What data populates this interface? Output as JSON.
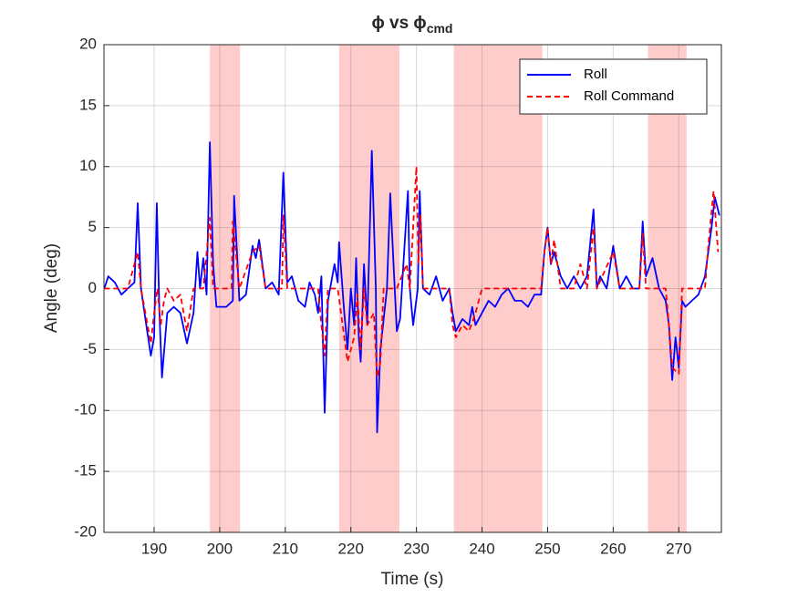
{
  "chart_data": {
    "type": "line",
    "title": {
      "text": "ϕ  vs  ϕ",
      "subscript": "cmd"
    },
    "xlabel": "Time (s)",
    "ylabel": "Angle (deg)",
    "xlim": [
      182.35,
      276.5
    ],
    "ylim": [
      -20,
      20
    ],
    "xticks": [
      190,
      200,
      210,
      220,
      230,
      240,
      250,
      260,
      270
    ],
    "yticks": [
      -20,
      -15,
      -10,
      -5,
      0,
      5,
      10,
      15,
      20
    ],
    "grid": true,
    "legend": "northeast",
    "shade_color": "#ffcccc",
    "shaded_regions": [
      [
        198.5,
        203.1
      ],
      [
        218.2,
        227.4
      ],
      [
        235.7,
        249.2
      ],
      [
        265.3,
        271.2
      ]
    ],
    "series": [
      {
        "name": "Roll",
        "color": "#0000ff",
        "dash": "solid",
        "x": [
          182.4,
          183,
          184,
          185,
          186,
          187,
          187.5,
          188,
          188.8,
          189.5,
          190,
          190.4,
          190.8,
          191.2,
          192,
          193,
          194,
          195,
          196,
          196.6,
          197,
          197.5,
          198,
          198.5,
          199,
          199.5,
          201,
          202,
          202.2,
          203,
          204,
          205,
          205.5,
          206,
          207,
          208,
          209,
          209.7,
          210.3,
          211,
          212,
          213,
          213.7,
          214.5,
          215,
          215.5,
          216,
          216.5,
          217,
          217.5,
          218,
          218.2,
          219,
          219.5,
          220,
          220.5,
          220.8,
          221.2,
          221.5,
          222,
          222.5,
          223.2,
          223.8,
          224,
          224.5,
          225.5,
          226,
          226.5,
          227,
          227.5,
          228,
          228.7,
          229,
          229.5,
          230.2,
          230.5,
          231,
          232,
          233,
          234,
          235,
          235.5,
          236,
          237,
          238,
          238.5,
          239,
          240,
          241,
          242,
          243,
          244,
          245,
          246,
          247,
          248,
          249,
          249.5,
          250,
          250.5,
          251,
          252,
          253,
          254,
          255,
          256,
          257,
          257.5,
          258,
          259,
          260,
          261,
          262,
          263,
          264,
          264.5,
          265,
          266,
          267,
          268,
          268.5,
          269,
          269.5,
          270,
          270.5,
          271,
          272,
          273,
          274,
          274.5,
          275,
          275.5,
          276.2
        ],
        "values": [
          0,
          1,
          0.5,
          -0.5,
          0,
          0.5,
          7,
          0,
          -3,
          -5.5,
          -4,
          7,
          -2,
          -7.3,
          -2,
          -1.5,
          -2,
          -4.5,
          -2,
          3,
          0,
          2.5,
          -0.5,
          12,
          2,
          -1.5,
          -1.5,
          -1,
          7.6,
          -1,
          -0.5,
          3.5,
          2.5,
          4,
          0,
          0.5,
          -0.5,
          9.5,
          0.5,
          1,
          -1,
          -1.5,
          0.5,
          -0.5,
          -2,
          1,
          -10.2,
          -1,
          0.5,
          2,
          0.5,
          3.8,
          -2,
          -5,
          0,
          -3,
          2.5,
          -4,
          -6,
          2,
          -3,
          11.3,
          0,
          -11.8,
          -5,
          0,
          7.8,
          2,
          -3.5,
          -2.5,
          2,
          8,
          0,
          -3,
          0,
          8,
          0,
          -0.5,
          1,
          -1,
          0,
          -2,
          -3.5,
          -2.5,
          -3,
          -1.5,
          -3,
          -2,
          -1,
          -1.5,
          -0.5,
          0,
          -1,
          -1,
          -1.5,
          -0.5,
          -0.5,
          3,
          5,
          2,
          3,
          1,
          0,
          1,
          0,
          1,
          6.5,
          0,
          1,
          0,
          3.5,
          0,
          1,
          0,
          0,
          5.5,
          1,
          2.5,
          0,
          -1,
          -3,
          -7.5,
          -4,
          -6.5,
          -1,
          -1.5,
          -1,
          -0.5,
          1,
          3,
          5,
          7.5,
          6
        ]
      },
      {
        "name": "Roll Command",
        "color": "#ff0000",
        "dash": "dashed",
        "x": [
          182.4,
          186,
          187.5,
          188,
          189,
          189.5,
          190,
          190.5,
          191,
          191.5,
          192,
          193,
          194,
          195,
          196,
          197.5,
          198.5,
          199,
          201.8,
          202,
          203,
          205,
          206,
          207,
          209.5,
          209.7,
          210.3,
          215,
          215.5,
          216,
          216.5,
          218,
          219,
          219.5,
          220.5,
          221,
          221.5,
          222,
          222.5,
          223.5,
          224,
          224.5,
          225,
          227,
          228.5,
          229,
          229.5,
          230,
          230.3,
          230.6,
          231,
          235,
          235.5,
          236,
          237,
          238,
          239,
          240,
          249,
          249.5,
          250,
          250.5,
          251,
          252,
          254,
          255,
          256,
          257,
          257.5,
          260,
          261,
          264,
          264.5,
          265,
          268,
          268.5,
          269,
          270,
          270.5,
          274,
          274.5,
          275.3,
          276
        ],
        "values": [
          0,
          0,
          3,
          0,
          -3,
          -4.5,
          -2,
          0,
          -3,
          -1,
          0,
          -1,
          -0.5,
          -3.5,
          0,
          0,
          5.8,
          0,
          0,
          5.5,
          0,
          3,
          3.5,
          0,
          0,
          6,
          0,
          0,
          -3,
          -5.5,
          0,
          0,
          -4,
          -6,
          -4,
          -0.5,
          -5,
          0,
          -3,
          -2,
          -7.3,
          -6,
          0,
          0,
          2,
          0,
          5,
          10,
          2,
          6,
          0,
          0,
          -3,
          -4,
          -3,
          -3.5,
          -2,
          0,
          0,
          3,
          5,
          2,
          4,
          0,
          0,
          2,
          0,
          5,
          0,
          3,
          0,
          0,
          4.5,
          0,
          0,
          -3,
          -6.5,
          -7,
          0,
          0,
          3.5,
          8,
          3
        ]
      }
    ]
  }
}
